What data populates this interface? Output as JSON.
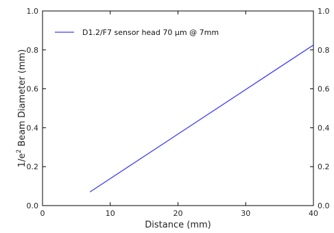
{
  "chart_data": {
    "type": "line",
    "x_ticks": [
      0,
      10,
      20,
      30,
      40
    ],
    "y_ticks": [
      0.0,
      0.2,
      0.4,
      0.6,
      0.8,
      1.0
    ],
    "x_tick_labels": [
      "0",
      "10",
      "20",
      "30",
      "40"
    ],
    "y_tick_labels": [
      "0.0",
      "0.2",
      "0.4",
      "0.6",
      "0.8",
      "1.0"
    ],
    "xlabel": "Distance (mm)",
    "ylabel": {
      "prefix": "1/e",
      "superscript": "2",
      "suffix": " Beam Diameter (mm)"
    },
    "xlim": [
      0,
      40
    ],
    "ylim": [
      0,
      1.0
    ],
    "grid": false,
    "mirror_right_axis": true,
    "legend": {
      "placement": "top-left",
      "entry": "D1.2/F7 sensor head    70 μm @ 7mm"
    },
    "series": [
      {
        "name": "D1.2/F7 sensor head    70 μm @ 7mm",
        "color": "#3a3aff",
        "x": [
          7,
          40
        ],
        "y": [
          0.07,
          0.825
        ]
      }
    ]
  }
}
